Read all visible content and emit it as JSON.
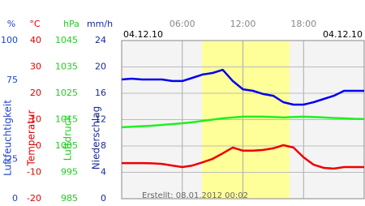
{
  "chart_data": {
    "type": "line",
    "date_left": "04.12.10",
    "date_right": "04.12.10",
    "footer": "Erstellt: 08.01.2012 00:02",
    "x": [
      0,
      1,
      2,
      3,
      4,
      5,
      6,
      7,
      8,
      9,
      10,
      11,
      12,
      13,
      14,
      15,
      16,
      17,
      18,
      19,
      20,
      21,
      22,
      23,
      24
    ],
    "xlim": [
      0,
      24
    ],
    "xticks": [
      {
        "value": 6,
        "label": "06:00"
      },
      {
        "value": 12,
        "label": "12:00"
      },
      {
        "value": 18,
        "label": "18:00"
      }
    ],
    "axes": [
      {
        "unit": "%",
        "label": "Luftfeuchtigkeit",
        "color": "#2244cc",
        "ylim": [
          0,
          100
        ],
        "yticks": [
          100,
          75,
          25,
          0
        ]
      },
      {
        "unit": "°C",
        "label": "Temperatur",
        "color": "#dd0000",
        "ylim": [
          -20,
          40
        ],
        "yticks": [
          40,
          30,
          20,
          10,
          0,
          -10,
          -20
        ]
      },
      {
        "unit": "hPa",
        "label": "Luftdruck",
        "color": "#22cc22",
        "ylim": [
          985,
          1045
        ],
        "yticks": [
          1045,
          1035,
          1025,
          1015,
          1005,
          995,
          985
        ]
      },
      {
        "unit": "mm/h",
        "label": "Niederschlag",
        "color": "#1a2a99",
        "ylim": [
          0,
          24
        ],
        "yticks": [
          24,
          20,
          16,
          12,
          8,
          4,
          0
        ]
      }
    ],
    "series": [
      {
        "axis": 0,
        "color": "#0000ee",
        "values": [
          75.4,
          75.9,
          75.4,
          75.4,
          75.4,
          74.4,
          74.4,
          76.4,
          78.5,
          79.5,
          81.5,
          74.4,
          69.2,
          68.2,
          66.2,
          65.1,
          61.0,
          59.5,
          59.5,
          61.0,
          63.1,
          65.1,
          68.2,
          68.2,
          68.2
        ]
      },
      {
        "axis": 2,
        "color": "#22ee22",
        "values": [
          1012.1,
          1012.3,
          1012.5,
          1012.7,
          1013,
          1013.3,
          1013.6,
          1014,
          1014.5,
          1015,
          1015.5,
          1015.8,
          1016.1,
          1016.1,
          1016.1,
          1016,
          1015.8,
          1016,
          1016.1,
          1016,
          1015.8,
          1015.6,
          1015.5,
          1015.3,
          1015.2
        ]
      },
      {
        "axis": 1,
        "color": "#ee0000",
        "values": [
          -6.5,
          -6.5,
          -6.5,
          -6.6,
          -6.8,
          -7.4,
          -8,
          -7.4,
          -6.2,
          -4.9,
          -2.8,
          -0.6,
          -1.8,
          -1.8,
          -1.5,
          -0.9,
          0.3,
          -0.6,
          -4.3,
          -7.1,
          -8.3,
          -8.6,
          -8,
          -8,
          -8
        ]
      }
    ]
  }
}
